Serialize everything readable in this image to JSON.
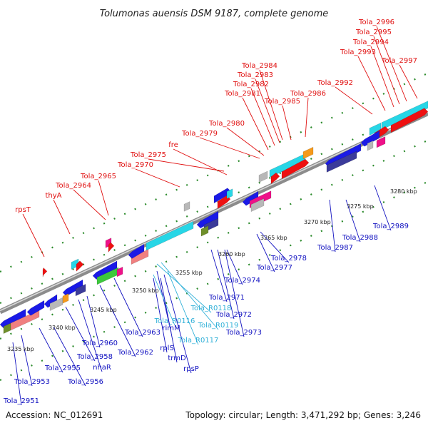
{
  "title": "Tolumonas auensis DSM 9187, complete genome",
  "footer": {
    "accession": "Accession: NC_012691",
    "topology": "Topology: circular; Length: 3,471,292 bp; Genes: 3,246"
  },
  "colors": {
    "top_strand_label": "#e01010",
    "bottom_strand_label": "#1010c0",
    "rna_label": "#30b0d8",
    "backbone": "#8c8c8c",
    "tick": "#2a8a2a"
  },
  "kbp_labels": [
    "3235 kbp",
    "3240 kbp",
    "3245 kbp",
    "3250 kbp",
    "3255 kbp",
    "3260 kbp",
    "3265 kbp",
    "3270 kbp",
    "3275 kbp",
    "3280 kbp"
  ],
  "top_labels": [
    "rpsT",
    "thyA",
    "Tola_2964",
    "Tola_2965",
    "Tola_2970",
    "Tola_2975",
    "fre",
    "Tola_2979",
    "Tola_2980",
    "Tola_2981",
    "Tola_2982",
    "Tola_2983",
    "Tola_2984",
    "Tola_2985",
    "Tola_2986",
    "Tola_2992",
    "Tola_2993",
    "Tola_2994",
    "Tola_2995",
    "Tola_2996",
    "Tola_2997"
  ],
  "bottom_labels": [
    "Tola_2951",
    "Tola_2953",
    "Tola_2955",
    "Tola_2956",
    "Tola_2958",
    "nhaR",
    "Tola_2960",
    "Tola_2962",
    "Tola_2963",
    "rimM",
    "Tola_R0116",
    "rplS",
    "trmD",
    "rpsP",
    "Tola_R0117",
    "Tola_R0118",
    "Tola_R0119",
    "Tola_2971",
    "Tola_2972",
    "Tola_2973",
    "Tola_2974",
    "Tola_2977",
    "Tola_2978",
    "Tola_2987",
    "Tola_2988",
    "Tola_2989"
  ]
}
